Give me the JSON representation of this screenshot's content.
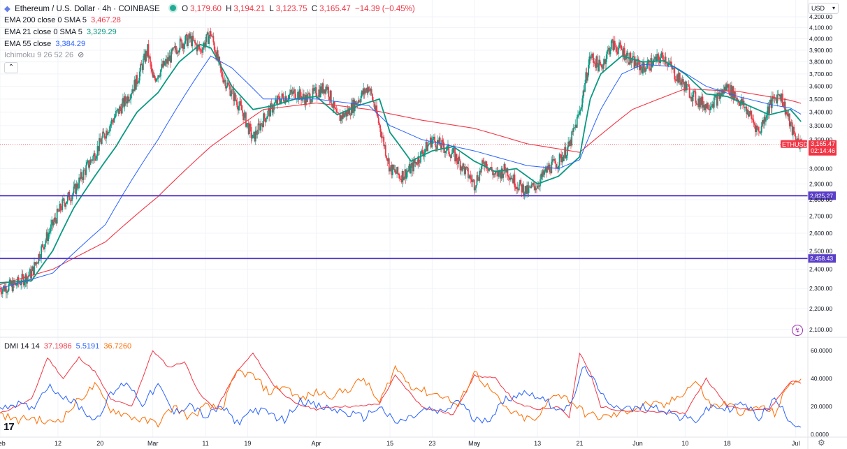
{
  "header": {
    "symbol": "Ethereum / U.S. Dollar · 4h · COINBASE",
    "open_label": "O",
    "open": "3,179.60",
    "high_label": "H",
    "high": "3,194.21",
    "low_label": "L",
    "low": "3,123.75",
    "close_label": "C",
    "close": "3,165.47",
    "change": "−14.39 (−0.45%)"
  },
  "indicators": [
    {
      "name": "EMA 200 close 0 SMA 5",
      "value": "3,467.28",
      "color": "#f23645"
    },
    {
      "name": "EMA 21 close 0 SMA 5",
      "value": "3,329.29",
      "color": "#089981"
    },
    {
      "name": "EMA 55 close",
      "value": "3,384.29",
      "color": "#2962ff"
    },
    {
      "name": "Ichimoku 9 26 52 26",
      "value": "",
      "color": "#6a6d78"
    }
  ],
  "currency_label": "USD",
  "dmi": {
    "name": "DMI 14 14",
    "plus_di": "37.1986",
    "minus_di": "5.5191",
    "adx": "36.7260",
    "colors": {
      "adx": "#f23645",
      "plus": "#ff6d00",
      "minus": "#2962ff"
    }
  },
  "price_tag": {
    "symbol": "ETHUSD",
    "price": "3,165.47",
    "countdown": "02:14:46"
  },
  "chart_data": [
    {
      "type": "line",
      "title": "Ethereum / U.S. Dollar · 4h · COINBASE",
      "ylim": [
        2100,
        4200
      ],
      "y_ticks": [
        "4,200.00",
        "4,100.00",
        "4,000.00",
        "3,900.00",
        "3,800.00",
        "3,700.00",
        "3,600.00",
        "3,500.00",
        "3,400.00",
        "3,300.00",
        "3,200.00",
        "3,000.00",
        "2,900.00",
        "2,800.00",
        "2,700.00",
        "2,600.00",
        "2,500.00",
        "2,400.00",
        "2,300.00",
        "2,200.00",
        "2,100.00"
      ],
      "x_ticks": [
        "Feb",
        "12",
        "20",
        "Mar",
        "11",
        "19",
        "Apr",
        "15",
        "23",
        "May",
        "13",
        "21",
        "Jun",
        "10",
        "18",
        "Jul"
      ],
      "x_tick_days": [
        0,
        11,
        19,
        29,
        39,
        47,
        60,
        74,
        82,
        90,
        102,
        110,
        121,
        130,
        138,
        151
      ],
      "x_range_days": [
        0,
        152.5
      ],
      "log_scale": true,
      "price_anchors": {
        "days": [
          0,
          3,
          6,
          8,
          10,
          12,
          14,
          16,
          18,
          20,
          22,
          24,
          26,
          28,
          29,
          32,
          34,
          36,
          38,
          40,
          42,
          44,
          46,
          48,
          50,
          53,
          56,
          58,
          60,
          62,
          64,
          66,
          68,
          70,
          72,
          74,
          76,
          78,
          80,
          82,
          84,
          86,
          88,
          90,
          92,
          94,
          96,
          98,
          100,
          102,
          104,
          106,
          108,
          110,
          112,
          114,
          116,
          118,
          120,
          122,
          124,
          126,
          128,
          130,
          132,
          134,
          136,
          138,
          140,
          142,
          144,
          146,
          148,
          150,
          151,
          152
        ],
        "close": [
          2300,
          2320,
          2380,
          2520,
          2650,
          2780,
          2850,
          2980,
          3100,
          3250,
          3380,
          3500,
          3650,
          3900,
          3650,
          3820,
          3950,
          4000,
          3900,
          4050,
          3700,
          3550,
          3400,
          3200,
          3350,
          3500,
          3550,
          3500,
          3550,
          3600,
          3350,
          3400,
          3500,
          3600,
          3300,
          3000,
          2950,
          3000,
          3100,
          3200,
          3150,
          3100,
          3000,
          2900,
          3050,
          2950,
          3000,
          2900,
          2850,
          2900,
          3000,
          3050,
          3150,
          3400,
          3850,
          3750,
          3950,
          3900,
          3800,
          3750,
          3800,
          3850,
          3700,
          3600,
          3500,
          3450,
          3500,
          3600,
          3500,
          3400,
          3250,
          3450,
          3550,
          3300,
          3200,
          3165
        ]
      },
      "series": [
        {
          "name": "EMA 200 close 0 SMA 5",
          "color": "#f23645",
          "width": 1.1,
          "days": [
            0,
            10,
            20,
            30,
            40,
            50,
            60,
            70,
            80,
            90,
            100,
            110,
            120,
            130,
            140,
            150,
            152
          ],
          "values": [
            2320,
            2400,
            2550,
            2820,
            3150,
            3420,
            3470,
            3420,
            3340,
            3280,
            3170,
            3110,
            3420,
            3580,
            3560,
            3490,
            3467
          ]
        },
        {
          "name": "EMA 21 close 0 SMA 5",
          "color": "#089981",
          "width": 1.8,
          "days": [
            0,
            6,
            10,
            14,
            18,
            22,
            26,
            30,
            34,
            38,
            40,
            44,
            48,
            52,
            56,
            60,
            64,
            68,
            72,
            74,
            78,
            82,
            86,
            90,
            94,
            98,
            102,
            106,
            110,
            112,
            114,
            118,
            122,
            126,
            130,
            134,
            138,
            142,
            146,
            150,
            152
          ],
          "values": [
            2330,
            2340,
            2500,
            2750,
            2950,
            3150,
            3400,
            3550,
            3800,
            3950,
            3920,
            3600,
            3420,
            3450,
            3500,
            3520,
            3380,
            3450,
            3500,
            3250,
            3050,
            3120,
            3150,
            3050,
            2980,
            3000,
            2900,
            2950,
            3080,
            3500,
            3700,
            3850,
            3800,
            3810,
            3700,
            3540,
            3520,
            3450,
            3380,
            3420,
            3329
          ]
        },
        {
          "name": "EMA 55 close",
          "color": "#2962ff",
          "width": 1,
          "days": [
            0,
            10,
            20,
            30,
            40,
            44,
            50,
            60,
            70,
            74,
            80,
            90,
            100,
            106,
            110,
            114,
            118,
            122,
            128,
            134,
            140,
            146,
            150,
            152
          ],
          "values": [
            2300,
            2380,
            2650,
            3200,
            3850,
            3750,
            3500,
            3500,
            3450,
            3300,
            3200,
            3120,
            3020,
            3000,
            3060,
            3420,
            3700,
            3780,
            3760,
            3600,
            3520,
            3460,
            3430,
            3384
          ]
        }
      ],
      "horizontal_levels": [
        {
          "value": 2825.27,
          "label": "2,825.27",
          "color": "#5b3fc9"
        },
        {
          "value": 2458.43,
          "label": "2,458.43",
          "color": "#5b3fc9"
        }
      ],
      "last_price": 3165.47
    },
    {
      "type": "line",
      "title": "DMI 14 14",
      "ylim": [
        0,
        63
      ],
      "y_ticks": [
        "60.0000",
        "40.0000",
        "20.0000",
        "0.0000"
      ],
      "series": [
        {
          "name": "ADX",
          "color": "#f23645",
          "days": [
            0,
            6,
            9,
            12,
            15,
            18,
            21,
            25,
            29,
            32,
            35,
            38,
            41,
            45,
            48,
            52,
            56,
            60,
            64,
            68,
            72,
            75,
            80,
            86,
            90,
            94,
            98,
            102,
            106,
            108,
            110,
            112,
            114,
            118,
            122,
            126,
            130,
            134,
            138,
            142,
            146,
            150,
            152
          ],
          "values": [
            15,
            25,
            55,
            40,
            55,
            45,
            25,
            20,
            60,
            48,
            52,
            28,
            18,
            45,
            58,
            35,
            22,
            18,
            20,
            20,
            22,
            42,
            20,
            14,
            42,
            40,
            22,
            18,
            20,
            12,
            58,
            44,
            20,
            17,
            16,
            16,
            15,
            40,
            20,
            18,
            18,
            38,
            37
          ]
        },
        {
          "name": "+DI",
          "color": "#ff6d00",
          "days": [
            0,
            3,
            6,
            9,
            12,
            15,
            18,
            21,
            24,
            27,
            30,
            33,
            36,
            39,
            42,
            45,
            48,
            51,
            54,
            57,
            60,
            63,
            66,
            69,
            72,
            75,
            78,
            81,
            84,
            87,
            90,
            93,
            96,
            99,
            102,
            105,
            108,
            111,
            114,
            117,
            120,
            123,
            126,
            129,
            132,
            135,
            138,
            141,
            144,
            147,
            150,
            152
          ],
          "values": [
            15,
            10,
            12,
            8,
            12,
            25,
            35,
            18,
            14,
            10,
            8,
            20,
            12,
            20,
            18,
            45,
            42,
            30,
            35,
            25,
            30,
            28,
            32,
            40,
            22,
            48,
            35,
            30,
            28,
            20,
            45,
            32,
            18,
            12,
            10,
            30,
            25,
            15,
            12,
            14,
            18,
            22,
            20,
            28,
            38,
            20,
            22,
            15,
            20,
            15,
            38,
            37
          ]
        },
        {
          "name": "−DI",
          "color": "#2962ff",
          "days": [
            0,
            3,
            6,
            9,
            12,
            15,
            18,
            21,
            24,
            27,
            30,
            33,
            36,
            39,
            42,
            45,
            48,
            51,
            54,
            57,
            60,
            63,
            66,
            69,
            72,
            75,
            78,
            81,
            84,
            87,
            90,
            93,
            96,
            99,
            102,
            105,
            108,
            111,
            114,
            117,
            120,
            123,
            126,
            129,
            132,
            135,
            138,
            141,
            144,
            147,
            150,
            152
          ],
          "values": [
            20,
            22,
            18,
            35,
            28,
            20,
            10,
            28,
            38,
            22,
            35,
            15,
            22,
            12,
            20,
            8,
            18,
            15,
            10,
            25,
            20,
            18,
            15,
            12,
            20,
            8,
            12,
            18,
            15,
            25,
            10,
            12,
            25,
            30,
            28,
            20,
            18,
            50,
            28,
            20,
            18,
            20,
            18,
            12,
            10,
            20,
            18,
            22,
            12,
            25,
            10,
            5.5
          ]
        }
      ]
    }
  ]
}
